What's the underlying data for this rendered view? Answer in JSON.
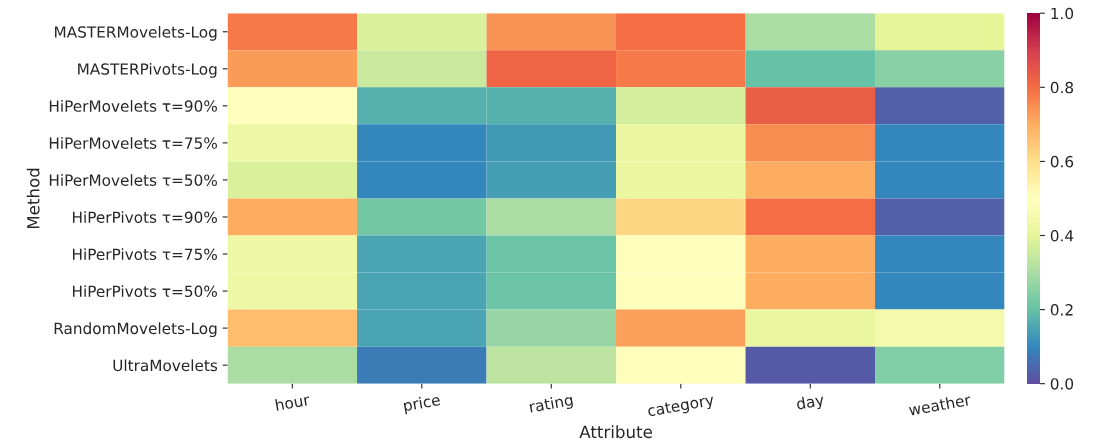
{
  "chart_data": {
    "type": "heatmap",
    "xlabel": "Attribute",
    "ylabel": "Method",
    "categories": [
      "hour",
      "price",
      "rating",
      "category",
      "day",
      "weather"
    ],
    "y_categories": [
      "MASTERMovelets-Log",
      "MASTERPivots-Log",
      "HiPerMovelets τ=90%",
      "HiPerMovelets τ=75%",
      "HiPerMovelets τ=50%",
      "HiPerPivots τ=90%",
      "HiPerPivots τ=75%",
      "HiPerPivots τ=50%",
      "RandomMovelets-Log",
      "UltraMovelets"
    ],
    "cells": [
      [
        0.78,
        0.38,
        0.74,
        0.8,
        0.3,
        0.4
      ],
      [
        0.73,
        0.35,
        0.82,
        0.78,
        0.2,
        0.25
      ],
      [
        0.5,
        0.17,
        0.17,
        0.37,
        0.83,
        0.03
      ],
      [
        0.43,
        0.1,
        0.13,
        0.42,
        0.75,
        0.1
      ],
      [
        0.38,
        0.1,
        0.14,
        0.42,
        0.7,
        0.1
      ],
      [
        0.7,
        0.22,
        0.3,
        0.62,
        0.8,
        0.03
      ],
      [
        0.43,
        0.15,
        0.21,
        0.49,
        0.7,
        0.1
      ],
      [
        0.43,
        0.15,
        0.21,
        0.49,
        0.7,
        0.1
      ],
      [
        0.67,
        0.15,
        0.27,
        0.72,
        0.42,
        0.45
      ],
      [
        0.3,
        0.08,
        0.33,
        0.49,
        0.02,
        0.24
      ]
    ],
    "clim": [
      0,
      1
    ],
    "cticks": [
      {
        "value": 0,
        "label": "0.0"
      },
      {
        "value": 0.2,
        "label": "0.2"
      },
      {
        "value": 0.4,
        "label": "0.4"
      },
      {
        "value": 0.6,
        "label": "0.6"
      },
      {
        "value": 0.8,
        "label": "0.8"
      },
      {
        "value": 1,
        "label": "1.0"
      }
    ]
  }
}
